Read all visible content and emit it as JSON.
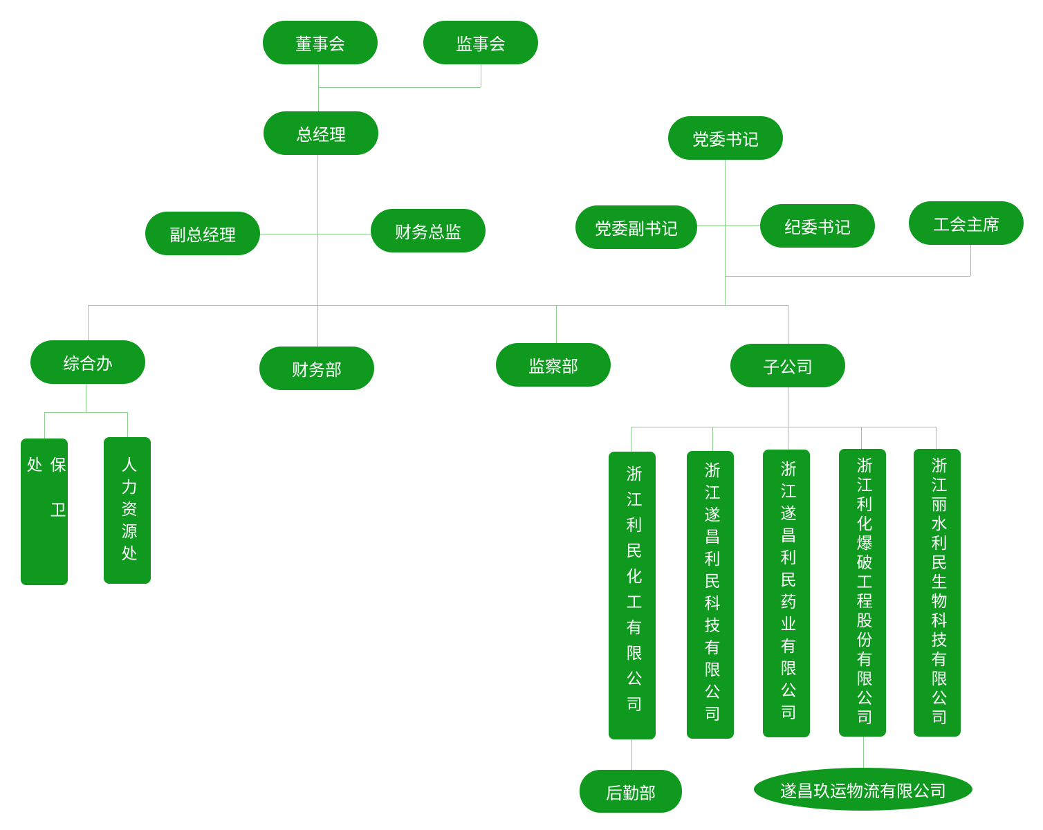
{
  "colors": {
    "node": "#0f9a1f",
    "connector": "#8ccf8f",
    "text": "#ffffff"
  },
  "top": {
    "board": "董事会",
    "supervisors": "监事会",
    "gm": "总经理",
    "party_secretary": "党委书记"
  },
  "level2": {
    "deputy_gm": "副总经理",
    "cfo": "财务总监",
    "deputy_party_secretary": "党委副书记",
    "discipline_secretary": "纪委书记",
    "union_chair": "工会主席"
  },
  "departments": {
    "general_office": "综合办",
    "finance": "财务部",
    "supervision": "监察部",
    "subsidiaries": "子公司"
  },
  "general_office_units": [
    "保卫处",
    "人力资源处"
  ],
  "subsidiary_list": [
    "浙江利民化工有限公司",
    "浙江遂昌利民科技有限公司",
    "浙江遂昌利民药业有限公司",
    "浙江利化爆破工程股份有限公司",
    "浙江丽水利民生物科技有限公司"
  ],
  "bottom": {
    "logistics": "后勤部",
    "transport": "遂昌玖运物流有限公司"
  }
}
